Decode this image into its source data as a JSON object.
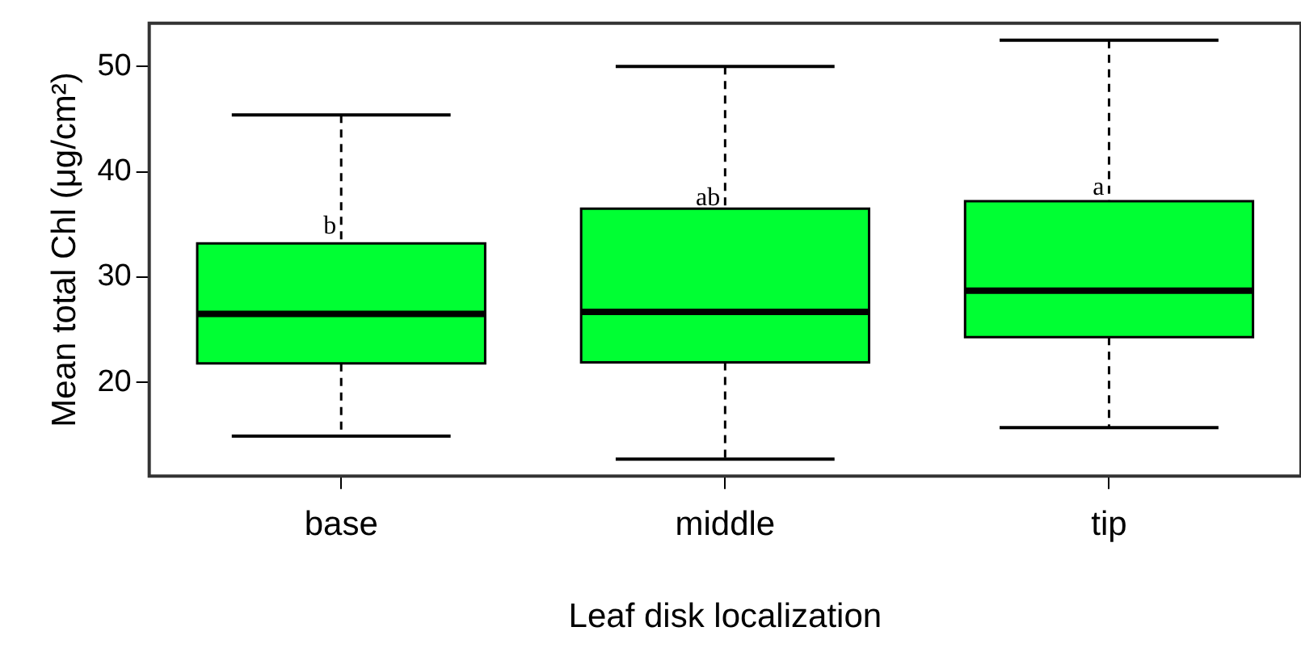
{
  "chart_data": {
    "type": "box",
    "xlabel": "Leaf disk localization",
    "ylabel": "Mean total Chl (μg/cm²)",
    "categories": [
      "base",
      "middle",
      "tip"
    ],
    "color": "#00ff33",
    "boxes": [
      {
        "low": 14.9,
        "q1": 21.8,
        "median": 26.5,
        "q3": 33.2,
        "high": 45.4
      },
      {
        "low": 12.7,
        "q1": 21.9,
        "median": 26.7,
        "q3": 36.5,
        "high": 50
      },
      {
        "low": 15.7,
        "q1": 24.3,
        "median": 28.7,
        "q3": 37.2,
        "high": 52.5
      }
    ],
    "ylim": [
      11.1,
      54.1
    ],
    "yticks": [
      20,
      30,
      40,
      50
    ],
    "annotations": [
      {
        "text": "b",
        "x": "base",
        "y": 34.9
      },
      {
        "text": "ab",
        "x": "middle",
        "y": 37.6
      },
      {
        "text": "a",
        "x": "tip",
        "y": 38.6
      }
    ]
  }
}
